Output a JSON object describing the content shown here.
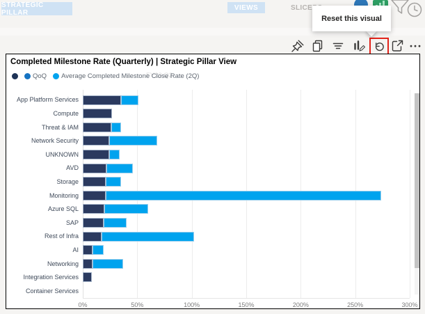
{
  "top_bar": {
    "pillar_button": "STRATEGIC PILLAR",
    "views_button": "VIEWS",
    "slicer_label": "SLICERS",
    "icons": [
      "blue-circle-icon",
      "green-chart-icon",
      "funnel-icon",
      "clock-icon"
    ],
    "button_bg": "#cfe2f4"
  },
  "tooltip": {
    "text": "Reset this visual"
  },
  "visual_toolbar": {
    "buttons": [
      "pin-icon",
      "copy-icon",
      "filter-icon",
      "chart-pen-icon",
      "reset-icon",
      "focus-mode-icon",
      "more-options-icon"
    ],
    "highlighted_button": "reset-icon",
    "highlight_color": "#e2231a"
  },
  "visual": {
    "title": "Completed Milestone Rate (Quarterly) | Strategic Pillar View",
    "watermark": "FY23 Q2",
    "legend": [
      {
        "label": "",
        "color": "#1e3356"
      },
      {
        "label": "QoQ",
        "color": "#1673c2"
      },
      {
        "label": "Average Completed Milestone Close Rate (2Q)",
        "color": "#00a3ee"
      }
    ]
  },
  "chart_data": {
    "type": "bar",
    "orientation": "horizontal",
    "stacked": true,
    "title": "Completed Milestone Rate (Quarterly) | Strategic Pillar View",
    "categories": [
      "App Platform Services",
      "Compute",
      "Threat & IAM",
      "Network Security",
      "UNKNOWN",
      "AVD",
      "Storage",
      "Monitoring",
      "Azure SQL",
      "SAP",
      "Rest of Infra",
      "AI",
      "Networking",
      "Integration Services",
      "Container Services"
    ],
    "series": [
      {
        "name": "",
        "color": "#2b3a5f",
        "values": [
          35,
          27,
          26,
          24,
          24,
          22,
          21,
          21,
          20,
          19,
          17,
          9,
          9,
          8,
          0
        ]
      },
      {
        "name": "Average Completed Milestone Close Rate (2Q)",
        "color": "#00a3ee",
        "values": [
          16,
          0,
          9,
          44,
          10,
          24,
          14,
          253,
          40,
          21,
          85,
          10,
          28,
          0,
          0
        ]
      }
    ],
    "legend_entries": [
      "",
      "QoQ",
      "Average Completed Milestone Close Rate (2Q)"
    ],
    "x_ticks": [
      "0%",
      "50%",
      "100%",
      "150%",
      "200%",
      "250%",
      "300%"
    ],
    "xlim": [
      0,
      300
    ],
    "unit": "%",
    "legend_position": "top",
    "grid": "vertical"
  }
}
